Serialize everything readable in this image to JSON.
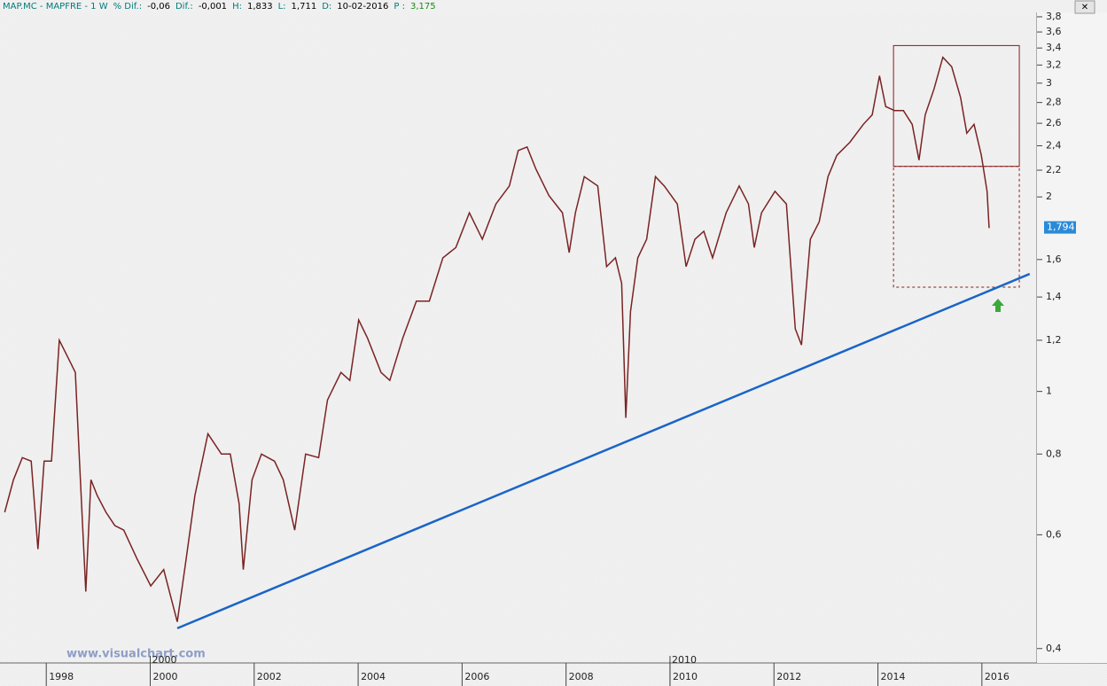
{
  "header": {
    "title": "MAP.MC - MAPFRE - 1 W",
    "fields": [
      {
        "label": "% Dif.:",
        "value": "-0,06"
      },
      {
        "label": "Dif.:",
        "value": "-0,001"
      },
      {
        "label": "H:",
        "value": "1,833"
      },
      {
        "label": "L:",
        "value": "1,711"
      },
      {
        "label": "D:",
        "value": "10-02-2016"
      },
      {
        "label": "P :",
        "value": "3,175"
      }
    ]
  },
  "watermark": "www.visualchart.com",
  "chart_data": {
    "type": "line",
    "log_scale": true,
    "color": "#7a2323",
    "x": [
      1997.2,
      1997.37,
      1997.54,
      1997.71,
      1997.84,
      1997.96,
      1998.1,
      1998.25,
      1998.39,
      1998.56,
      1998.64,
      1998.76,
      1998.86,
      1998.98,
      1999.15,
      1999.32,
      1999.49,
      1999.75,
      2000.01,
      2000.26,
      2000.52,
      2000.69,
      2000.86,
      2001.11,
      2001.37,
      2001.54,
      2001.71,
      2001.79,
      2001.96,
      2002.14,
      2002.39,
      2002.56,
      2002.78,
      2002.99,
      2003.24,
      2003.41,
      2003.67,
      2003.84,
      2004.01,
      2004.18,
      2004.44,
      2004.61,
      2004.86,
      2005.12,
      2005.37,
      2005.63,
      2005.88,
      2006.14,
      2006.39,
      2006.65,
      2006.91,
      2007.08,
      2007.25,
      2007.42,
      2007.67,
      2007.93,
      2008.06,
      2008.18,
      2008.35,
      2008.61,
      2008.78,
      2008.95,
      2009.07,
      2009.15,
      2009.24,
      2009.38,
      2009.55,
      2009.72,
      2009.89,
      2010.14,
      2010.31,
      2010.48,
      2010.65,
      2010.82,
      2011.08,
      2011.33,
      2011.51,
      2011.62,
      2011.76,
      2012.02,
      2012.24,
      2012.41,
      2012.53,
      2012.7,
      2012.87,
      2013.04,
      2013.21,
      2013.46,
      2013.72,
      2013.89,
      2014.03,
      2014.15,
      2014.32,
      2014.49,
      2014.66,
      2014.79,
      2014.91,
      2015.08,
      2015.25,
      2015.42,
      2015.59,
      2015.71,
      2015.85,
      2015.99,
      2016.1,
      2016.14
    ],
    "values": [
      0.65,
      0.73,
      0.79,
      0.78,
      0.57,
      0.78,
      0.78,
      1.2,
      1.14,
      1.07,
      0.78,
      0.49,
      0.73,
      0.69,
      0.65,
      0.62,
      0.61,
      0.55,
      0.5,
      0.53,
      0.44,
      0.55,
      0.69,
      0.86,
      0.8,
      0.8,
      0.67,
      0.53,
      0.73,
      0.8,
      0.78,
      0.73,
      0.61,
      0.8,
      0.79,
      0.97,
      1.07,
      1.04,
      1.29,
      1.21,
      1.07,
      1.04,
      1.21,
      1.38,
      1.38,
      1.61,
      1.67,
      1.89,
      1.72,
      1.95,
      2.08,
      2.36,
      2.39,
      2.21,
      2.01,
      1.89,
      1.64,
      1.89,
      2.15,
      2.08,
      1.56,
      1.61,
      1.47,
      0.91,
      1.33,
      1.61,
      1.72,
      2.15,
      2.08,
      1.95,
      1.56,
      1.72,
      1.77,
      1.61,
      1.89,
      2.08,
      1.95,
      1.67,
      1.89,
      2.04,
      1.95,
      1.25,
      1.18,
      1.72,
      1.83,
      2.15,
      2.32,
      2.43,
      2.59,
      2.68,
      3.08,
      2.76,
      2.72,
      2.72,
      2.59,
      2.28,
      2.68,
      2.94,
      3.29,
      3.18,
      2.85,
      2.51,
      2.59,
      2.32,
      2.04,
      1.79
    ],
    "last_value": 1.794,
    "last_value_label": "1,794",
    "trendline": {
      "x": [
        2000.52,
        2016.92
      ],
      "values": [
        0.43,
        1.52
      ],
      "color": "#1a64c8"
    },
    "boxes": [
      {
        "x": [
          2014.3,
          2016.72
        ],
        "y": [
          2.23,
          3.43
        ],
        "style": "solid",
        "color": "#8b1a1a"
      },
      {
        "x": [
          2014.3,
          2016.72
        ],
        "y": [
          1.45,
          2.23
        ],
        "style": "dashed",
        "color": "#8b1a1a"
      }
    ],
    "xlim": [
      1997.11,
      2017.06
    ],
    "ylim": [
      0.38,
      3.86
    ],
    "xticks": [
      1998,
      2000,
      2002,
      2004,
      2006,
      2008,
      2010,
      2012,
      2014,
      2016
    ],
    "decade_ticks": [
      2000,
      2010
    ],
    "yticks": [
      {
        "value": 0.4,
        "label": "0,4"
      },
      {
        "value": 0.6,
        "label": "0,6"
      },
      {
        "value": 0.8,
        "label": "0,8"
      },
      1,
      {
        "value": 1.2,
        "label": "1,2"
      },
      {
        "value": 1.4,
        "label": "1,4"
      },
      {
        "value": 1.6,
        "label": "1,6"
      },
      2,
      {
        "value": 2.2,
        "label": "2,2"
      },
      {
        "value": 2.4,
        "label": "2,4"
      },
      {
        "value": 2.6,
        "label": "2,6"
      },
      {
        "value": 2.8,
        "label": "2,8"
      },
      3,
      {
        "value": 3.2,
        "label": "3,2"
      },
      {
        "value": 3.4,
        "label": "3,4"
      },
      {
        "value": 3.6,
        "label": "3,6"
      },
      {
        "value": 3.8,
        "label": "3,8"
      }
    ]
  }
}
